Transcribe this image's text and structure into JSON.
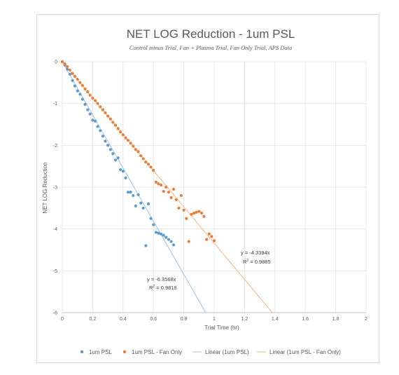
{
  "chart_data": {
    "type": "scatter",
    "title": "NET LOG Reduction - 1um PSL",
    "subtitle": "Control minus Trial, Fan + Plasma Trial, Fan Only Trial, APS Data",
    "xlabel": "Trial Time (hr)",
    "ylabel": "NET LOG Reduction",
    "xlim": [
      0,
      2
    ],
    "ylim": [
      -6,
      0
    ],
    "x_ticks": [
      0,
      0.2,
      0.4,
      0.6,
      0.8,
      1,
      1.2,
      1.4,
      1.6,
      1.8,
      2
    ],
    "x_tick_labels": [
      "0",
      "0.2",
      "0.4",
      "0.6",
      "0.8",
      "1",
      "1.2",
      "1.4",
      "1.6",
      "1.8",
      "2"
    ],
    "y_ticks": [
      0,
      -1,
      -2,
      -3,
      -4,
      -5,
      -6
    ],
    "y_tick_labels": [
      "0",
      "-1",
      "-2",
      "-3",
      "-4",
      "-5",
      "-6"
    ],
    "grid": true,
    "legend_position": "bottom",
    "series": [
      {
        "name": "1um PSL",
        "color": "#5b9bd5",
        "marker": "circle",
        "x": [
          0,
          0.017,
          0.033,
          0.05,
          0.067,
          0.083,
          0.1,
          0.117,
          0.133,
          0.15,
          0.167,
          0.183,
          0.2,
          0.217,
          0.233,
          0.25,
          0.267,
          0.283,
          0.3,
          0.317,
          0.333,
          0.35,
          0.367,
          0.383,
          0.4,
          0.417,
          0.433,
          0.45,
          0.467,
          0.483,
          0.5,
          0.517,
          0.533,
          0.55,
          0.567,
          0.583,
          0.6,
          0.617,
          0.633,
          0.65,
          0.667,
          0.683,
          0.7,
          0.717,
          0.733
        ],
        "y": [
          0,
          -0.08,
          -0.18,
          -0.3,
          -0.45,
          -0.58,
          -0.7,
          -0.78,
          -0.9,
          -1.02,
          -1.15,
          -1.25,
          -1.4,
          -1.42,
          -1.55,
          -1.65,
          -1.78,
          -1.9,
          -2.0,
          -2.1,
          -2.2,
          -2.35,
          -2.3,
          -2.58,
          -2.62,
          -2.78,
          -3.12,
          -3.12,
          -3.2,
          -3.45,
          -3.18,
          -3.38,
          -3.5,
          -4.4,
          -3.4,
          -3.75,
          -3.9,
          -4.08,
          -4.1,
          -4.12,
          -4.15,
          -4.2,
          -4.25,
          -4.3,
          -4.38
        ]
      },
      {
        "name": "1um PSL - Fan Only",
        "color": "#ed7d31",
        "marker": "circle",
        "x": [
          0,
          0.017,
          0.033,
          0.05,
          0.067,
          0.083,
          0.1,
          0.117,
          0.133,
          0.15,
          0.167,
          0.183,
          0.2,
          0.217,
          0.233,
          0.25,
          0.267,
          0.283,
          0.3,
          0.317,
          0.333,
          0.35,
          0.367,
          0.383,
          0.4,
          0.417,
          0.433,
          0.45,
          0.467,
          0.483,
          0.5,
          0.517,
          0.533,
          0.55,
          0.567,
          0.583,
          0.6,
          0.617,
          0.633,
          0.65,
          0.667,
          0.683,
          0.7,
          0.717,
          0.733,
          0.75,
          0.767,
          0.783,
          0.8,
          0.817,
          0.833,
          0.85,
          0.867,
          0.883,
          0.9,
          0.917,
          0.933,
          0.95,
          0.967,
          0.983,
          1.0
        ],
        "y": [
          0,
          -0.05,
          -0.12,
          -0.2,
          -0.28,
          -0.35,
          -0.42,
          -0.5,
          -0.57,
          -0.65,
          -0.72,
          -0.8,
          -0.87,
          -0.93,
          -1.0,
          -1.08,
          -1.15,
          -1.22,
          -1.3,
          -1.37,
          -1.45,
          -1.52,
          -1.6,
          -1.68,
          -1.75,
          -1.82,
          -1.88,
          -1.95,
          -2.02,
          -2.1,
          -2.15,
          -2.25,
          -2.32,
          -2.4,
          -2.45,
          -2.52,
          -2.6,
          -2.88,
          -2.92,
          -2.95,
          -3.1,
          -3.0,
          -3.12,
          -3.25,
          -3.05,
          -3.3,
          -3.5,
          -3.2,
          -3.55,
          -3.75,
          -4.3,
          -3.65,
          -3.62,
          -3.6,
          -3.58,
          -3.62,
          -3.7,
          -4.25,
          -4.12,
          -4.18,
          -4.28
        ]
      }
    ],
    "trendlines": [
      {
        "name": "Linear (1um PSL)",
        "color": "#9dc3e6",
        "slope": -6.3568,
        "intercept": 0,
        "equation": "y = -6.3568x",
        "r2_prefix": "R",
        "r2_suffix": " = 0.9818"
      },
      {
        "name": "Linear (1um PSL - Fan Only)",
        "color": "#f4b183",
        "slope": -4.3394,
        "intercept": 0,
        "equation": "y = -4.3394x",
        "r2_prefix": "R",
        "r2_suffix": " = 0.9885"
      }
    ]
  }
}
